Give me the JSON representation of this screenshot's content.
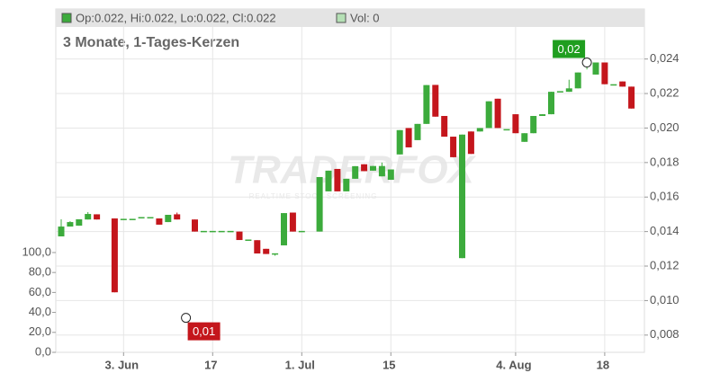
{
  "chart_data": {
    "type": "candlestick",
    "subtitle": "3 Monate, 1-Tages-Kerzen",
    "legend": {
      "ohlc": "Op:0.022, Hi:0.022, Lo:0.022, Cl:0.022",
      "volume": "Vol: 0"
    },
    "watermark": {
      "title": "TRADERFOX",
      "subtitle": "REALTIME STOCK SCREENING"
    },
    "categories": [
      null,
      null,
      null,
      null,
      null,
      null,
      null,
      "3. Jun",
      null,
      null,
      null,
      null,
      null,
      null,
      null,
      null,
      null,
      "17",
      null,
      null,
      null,
      null,
      null,
      null,
      null,
      null,
      null,
      "1. Jul",
      null,
      null,
      null,
      null,
      null,
      null,
      null,
      null,
      null,
      "15",
      null,
      null,
      null,
      null,
      null,
      null,
      null,
      null,
      null,
      null,
      null,
      null,
      null,
      "4. Aug",
      null,
      null,
      null,
      null,
      null,
      null,
      null,
      null,
      null,
      "18",
      null,
      null,
      null
    ],
    "open": [
      0.01372,
      0.01429,
      0.01434,
      0.0147,
      0.015,
      null,
      0.01476,
      0.0147,
      0.0147,
      0.0148,
      0.0148,
      0.01476,
      0.01455,
      0.015,
      null,
      0.0147,
      0.014,
      0.014,
      0.014,
      0.014,
      0.014,
      0.0135,
      0.0135,
      0.013,
      0.0127,
      0.0132,
      0.0151,
      0.014,
      null,
      0.014,
      0.01633,
      0.01763,
      0.01633,
      0.01706,
      0.0179,
      0.01753,
      0.0172,
      0.017,
      0.01847,
      0.02,
      0.0193,
      0.02024,
      0.0225,
      0.0207,
      0.0195,
      0.01246,
      0.0198,
      0.0198,
      0.02,
      0.0217,
      0.0199,
      0.0208,
      0.0192,
      0.0197,
      0.0207,
      0.0208,
      0.0221,
      0.0221,
      0.0223,
      0.0236,
      0.0231,
      0.0238,
      0.0225,
      0.0227,
      0.0224
    ],
    "high": [
      0.01471,
      0.0146,
      0.01471,
      0.01513,
      0.015,
      null,
      0.01476,
      0.0147,
      0.0147,
      0.0148,
      0.0148,
      0.01476,
      0.01497,
      0.0151,
      null,
      0.0147,
      0.014,
      0.014,
      0.014,
      0.014,
      0.014,
      0.0135,
      0.0135,
      0.013,
      0.0127,
      0.01507,
      0.0151,
      0.014,
      null,
      0.01716,
      0.01753,
      0.01763,
      0.01706,
      0.01779,
      0.0179,
      0.0178,
      0.018,
      0.0176,
      0.01988,
      0.02,
      0.02024,
      0.02249,
      0.0225,
      0.0207,
      0.0195,
      0.01962,
      0.0198,
      0.02,
      0.02155,
      0.0217,
      0.0199,
      0.0208,
      0.0197,
      0.0207,
      0.0208,
      0.0221,
      0.0221,
      0.0228,
      0.02322,
      0.0238,
      0.0238,
      0.0238,
      0.0225,
      0.0227,
      0.0224
    ],
    "low": [
      0.01372,
      0.01429,
      0.01434,
      0.0147,
      0.0147,
      null,
      0.01048,
      0.0147,
      0.0147,
      0.0148,
      0.0148,
      0.0144,
      0.01455,
      0.0147,
      null,
      0.014,
      0.014,
      0.014,
      0.014,
      0.014,
      0.01351,
      0.0135,
      0.01273,
      0.0127,
      0.0126,
      0.0132,
      0.014,
      0.014,
      null,
      0.014,
      0.01633,
      0.01633,
      0.01633,
      0.01706,
      0.0175,
      0.01753,
      0.0172,
      0.017,
      0.01847,
      0.01888,
      0.0193,
      0.02024,
      0.02066,
      0.0195,
      0.01831,
      0.01246,
      0.0185,
      0.0198,
      0.02,
      0.02,
      0.0199,
      0.0197,
      0.0192,
      0.0197,
      0.0207,
      0.0208,
      0.0221,
      0.0221,
      0.0223,
      0.0234,
      0.0231,
      0.02254,
      0.0225,
      0.0224,
      0.02113
    ],
    "close": [
      0.01429,
      0.01455,
      0.01471,
      0.01502,
      0.0147,
      null,
      0.01048,
      0.0147,
      0.0147,
      0.0148,
      0.0148,
      0.0144,
      0.01497,
      0.0147,
      null,
      0.014,
      0.014,
      0.014,
      0.014,
      0.014,
      0.01351,
      0.0135,
      0.01273,
      0.0127,
      0.0127,
      0.01507,
      0.014,
      0.014,
      null,
      0.01716,
      0.01753,
      0.01633,
      0.01706,
      0.01779,
      0.0175,
      0.0178,
      0.0178,
      0.0176,
      0.01988,
      0.01888,
      0.02024,
      0.02249,
      0.02066,
      0.0195,
      0.01831,
      0.01962,
      0.0185,
      0.02,
      0.02155,
      0.02,
      0.0199,
      0.0197,
      0.0197,
      0.0207,
      0.0208,
      0.0221,
      0.0221,
      0.0223,
      0.02322,
      0.0236,
      0.0238,
      0.02254,
      0.0225,
      0.0224,
      0.02113
    ],
    "up_color": "#3cab3c",
    "down_color": "#c4161c",
    "ylim": [
      0.007,
      0.0269
    ],
    "yticks": [
      {
        "value": 0.008,
        "label": "0,008"
      },
      {
        "value": 0.01,
        "label": "0,010"
      },
      {
        "value": 0.012,
        "label": "0,012"
      },
      {
        "value": 0.014,
        "label": "0,014"
      },
      {
        "value": 0.016,
        "label": "0,016"
      },
      {
        "value": 0.018,
        "label": "0,018"
      },
      {
        "value": 0.02,
        "label": "0,020"
      },
      {
        "value": 0.022,
        "label": "0,022"
      },
      {
        "value": 0.024,
        "label": "0,024"
      }
    ],
    "y2lim": [
      0,
      344
    ],
    "y2ticks": [
      {
        "value": 0,
        "label": "0,0"
      },
      {
        "value": 20,
        "label": "20,0"
      },
      {
        "value": 40,
        "label": "40,0"
      },
      {
        "value": 60,
        "label": "60,0"
      },
      {
        "value": 80,
        "label": "80,0"
      },
      {
        "value": 100,
        "label": "100,0"
      }
    ],
    "grid": true,
    "annotations": [
      {
        "text": "0,02",
        "index": 59,
        "value": 0.0238,
        "color": "#1f9e1f"
      },
      {
        "text": "0,01",
        "index": 14,
        "value": 0.009,
        "color": "#c4161c"
      }
    ]
  }
}
